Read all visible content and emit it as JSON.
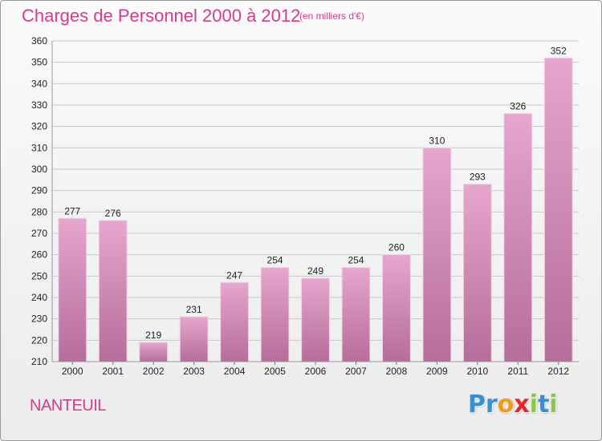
{
  "header": {
    "title": "Charges de Personnel 2000 à 2012",
    "subtitle": "(en milliers d'€)"
  },
  "footer": {
    "commune": "NANTEUIL",
    "logo_text": "Proxiti",
    "logo_letters": [
      {
        "char": "P",
        "color": "#3a8fd0"
      },
      {
        "char": "r",
        "color": "#3a8fd0"
      },
      {
        "char": "o",
        "color": "#f29a1f"
      },
      {
        "char": "x",
        "color": "#e8262a"
      },
      {
        "char": "i",
        "color": "#8dc63f"
      },
      {
        "char": "t",
        "color": "#3a8fd0"
      },
      {
        "char": "i",
        "color": "#8dc63f"
      }
    ]
  },
  "colors": {
    "accent": "#d43d8c",
    "bar_top": "#e6a6cd",
    "bar_bottom": "#b56d99",
    "grid": "#c8c8c8",
    "axis_text": "#222222"
  },
  "chart_data": {
    "type": "bar",
    "title": "Charges de Personnel 2000 à 2012",
    "subtitle": "(en milliers d'€)",
    "categories": [
      "2000",
      "2001",
      "2002",
      "2003",
      "2004",
      "2005",
      "2006",
      "2007",
      "2008",
      "2009",
      "2010",
      "2011",
      "2012"
    ],
    "values": [
      277,
      276,
      219,
      231,
      247,
      254,
      249,
      254,
      260,
      310,
      293,
      326,
      352
    ],
    "ylim": [
      210,
      360
    ],
    "yticks": [
      210,
      220,
      230,
      240,
      250,
      260,
      270,
      280,
      290,
      300,
      310,
      320,
      330,
      340,
      350,
      360
    ],
    "grid": true,
    "data_labels": true
  }
}
